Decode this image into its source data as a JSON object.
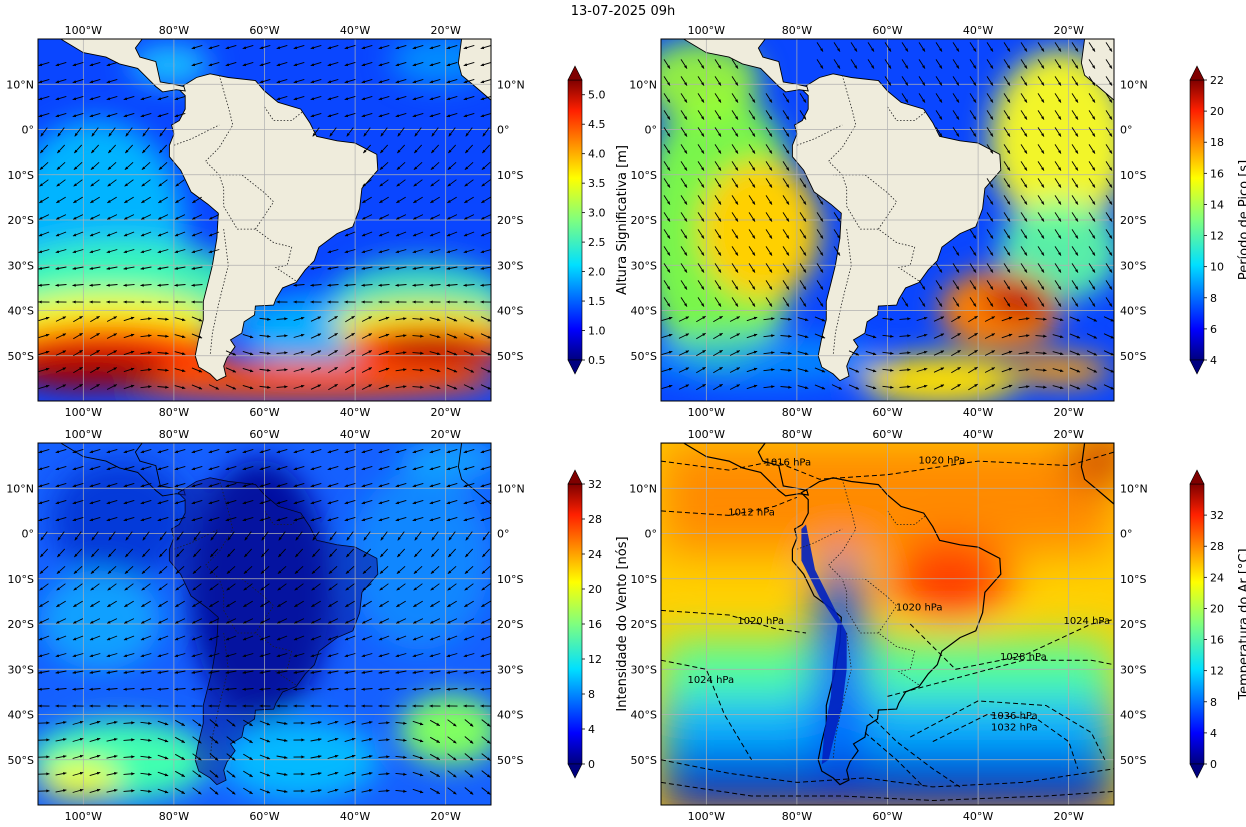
{
  "figure": {
    "title": "13-07-2025 09h"
  },
  "colors": {
    "land": "#efecdc",
    "border": "#000000",
    "grid": "#b0b0b0",
    "vector": "#000000",
    "isobar": "#000000"
  },
  "map_axes": {
    "lon_range": [
      -110,
      -10
    ],
    "lat_range": [
      -60,
      20
    ],
    "lon_ticks": [
      -100,
      -80,
      -60,
      -40,
      -20
    ],
    "lon_tick_labels": [
      "100°W",
      "80°W",
      "60°W",
      "40°W",
      "20°W"
    ],
    "lat_ticks": [
      10,
      0,
      -10,
      -20,
      -30,
      -40,
      -50
    ],
    "lat_tick_labels": [
      "10°N",
      "0°",
      "10°S",
      "20°S",
      "30°S",
      "40°S",
      "50°S"
    ],
    "grid": true
  },
  "chart_data": [
    {
      "type": "heatmap",
      "panel": "top-left",
      "colormap": "jet",
      "colorbar": {
        "label": "Altura Significativa [m]",
        "range": [
          0.5,
          5.25
        ],
        "ticks": [
          0.5,
          1.0,
          1.5,
          2.0,
          2.5,
          3.0,
          3.5,
          4.0,
          4.5,
          5.0
        ],
        "tick_labels": [
          "0.5",
          "1.0",
          "1.5",
          "2.0",
          "2.5",
          "3.0",
          "3.5",
          "4.0",
          "4.5",
          "5.0"
        ],
        "extend": "both"
      },
      "vectors": "wave direction"
    },
    {
      "type": "heatmap",
      "panel": "top-right",
      "colormap": "jet",
      "colorbar": {
        "label": "Período de Pico [s]",
        "range": [
          4,
          22
        ],
        "ticks": [
          4,
          6,
          8,
          10,
          12,
          14,
          16,
          18,
          20,
          22
        ],
        "tick_labels": [
          "4",
          "6",
          "8",
          "10",
          "12",
          "14",
          "16",
          "18",
          "20",
          "22"
        ],
        "extend": "both"
      },
      "vectors": "wave direction"
    },
    {
      "type": "heatmap",
      "panel": "bottom-left",
      "colormap": "jet",
      "colorbar": {
        "label": "Intensidade do Vento [nós]",
        "range": [
          0,
          32
        ],
        "ticks": [
          0,
          4,
          8,
          12,
          16,
          20,
          24,
          28,
          32
        ],
        "tick_labels": [
          "0",
          "4",
          "8",
          "12",
          "16",
          "20",
          "24",
          "28",
          "32"
        ],
        "extend": "both"
      },
      "vectors": "wind"
    },
    {
      "type": "heatmap",
      "panel": "bottom-right",
      "colormap": "jet",
      "colorbar": {
        "label": "Temperatura do Ar [°C]",
        "range": [
          0,
          36
        ],
        "ticks": [
          0,
          4,
          8,
          12,
          16,
          20,
          24,
          28,
          32
        ],
        "tick_labels": [
          "0",
          "4",
          "8",
          "12",
          "16",
          "20",
          "24",
          "28",
          "32"
        ],
        "extend": "both"
      },
      "isobars": [
        {
          "label": "1016 hPa",
          "lon": -82,
          "lat": 15
        },
        {
          "label": "1020 hPa",
          "lon": -48,
          "lat": 15.5
        },
        {
          "label": "1012 hPa",
          "lon": -90,
          "lat": 4
        },
        {
          "label": "1020 hPa",
          "lon": -88,
          "lat": -20
        },
        {
          "label": "1020 hPa",
          "lon": -53,
          "lat": -17
        },
        {
          "label": "1024 hPa",
          "lon": -99,
          "lat": -33
        },
        {
          "label": "1024 hPa",
          "lon": -16,
          "lat": -20
        },
        {
          "label": "1028 hPa",
          "lon": -30,
          "lat": -28
        },
        {
          "label": "1036 hPa",
          "lon": -32,
          "lat": -41
        },
        {
          "label": "1032 hPa",
          "lon": -32,
          "lat": -43.5
        }
      ]
    }
  ]
}
